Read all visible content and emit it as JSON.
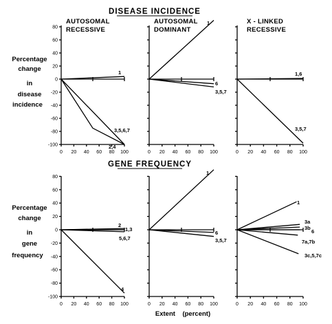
{
  "headings": {
    "top": "DISEASE INCIDENCE",
    "bottom": "GENE FREQUENCY"
  },
  "columns": {
    "c0": [
      "AUTOSOMAL",
      "RECESSIVE"
    ],
    "c1": [
      "AUTOSOMAL",
      "DOMINANT"
    ],
    "c2": [
      "X - LINKED",
      "RECESSIVE"
    ]
  },
  "ylabels": {
    "top": [
      "Percentage",
      "change",
      "in",
      "disease",
      "incidence"
    ],
    "bottom": [
      "Percentage",
      "change",
      "in",
      "gene",
      "frequency"
    ]
  },
  "xlabel": "Extent    (percent)",
  "chart_data": [
    {
      "type": "line",
      "panel": "disease-incidence-autosomal-recessive",
      "xlim": [
        0,
        100
      ],
      "ylim": [
        -100,
        80
      ],
      "grid": false,
      "xticks": [
        0,
        20,
        40,
        60,
        80,
        100
      ],
      "yticks": [
        80,
        60,
        40,
        20,
        0,
        -20,
        -40,
        -60,
        -80,
        -100
      ],
      "series": [
        {
          "name": "1",
          "x": [
            0,
            100
          ],
          "y": [
            0,
            4
          ]
        },
        {
          "name": "3,5,6,7",
          "x": [
            0,
            100
          ],
          "y": [
            0,
            -100
          ]
        },
        {
          "name": "2,4",
          "x": [
            0,
            50,
            100
          ],
          "y": [
            0,
            -75,
            -100
          ]
        }
      ]
    },
    {
      "type": "line",
      "panel": "disease-incidence-autosomal-dominant",
      "xlim": [
        0,
        100
      ],
      "ylim": [
        -100,
        80
      ],
      "grid": false,
      "xticks": [
        0,
        20,
        40,
        60,
        80,
        100
      ],
      "series": [
        {
          "name": "1",
          "x": [
            0,
            100
          ],
          "y": [
            0,
            90
          ]
        },
        {
          "name": "6",
          "x": [
            0,
            100
          ],
          "y": [
            0,
            -7
          ]
        },
        {
          "name": "3,5,7",
          "x": [
            0,
            100
          ],
          "y": [
            0,
            -12
          ]
        }
      ]
    },
    {
      "type": "line",
      "panel": "disease-incidence-x-linked-recessive",
      "xlim": [
        0,
        100
      ],
      "ylim": [
        -100,
        80
      ],
      "grid": false,
      "xticks": [
        0,
        20,
        40,
        60,
        80,
        100
      ],
      "series": [
        {
          "name": "1,6",
          "x": [
            0,
            100
          ],
          "y": [
            0,
            1
          ]
        },
        {
          "name": "3,5,7",
          "x": [
            0,
            100
          ],
          "y": [
            0,
            -98
          ]
        }
      ]
    },
    {
      "type": "line",
      "panel": "gene-frequency-autosomal-recessive",
      "xlim": [
        0,
        100
      ],
      "ylim": [
        -100,
        80
      ],
      "grid": false,
      "xticks": [
        0,
        20,
        40,
        60,
        80,
        100
      ],
      "yticks": [
        80,
        60,
        40,
        20,
        0,
        -20,
        -40,
        -60,
        -80,
        -100
      ],
      "series": [
        {
          "name": "2",
          "x": [
            0,
            100
          ],
          "y": [
            0,
            2
          ]
        },
        {
          "name": "1,3",
          "x": [
            0,
            100
          ],
          "y": [
            0,
            0
          ]
        },
        {
          "name": "5,6,7",
          "x": [
            0,
            100
          ],
          "y": [
            0,
            -3
          ]
        },
        {
          "name": "4",
          "x": [
            0,
            100
          ],
          "y": [
            0,
            -95
          ]
        }
      ]
    },
    {
      "type": "line",
      "panel": "gene-frequency-autosomal-dominant",
      "xlim": [
        0,
        100
      ],
      "ylim": [
        -100,
        80
      ],
      "grid": false,
      "xticks": [
        0,
        20,
        40,
        60,
        80,
        100
      ],
      "series": [
        {
          "name": "1",
          "x": [
            0,
            100
          ],
          "y": [
            0,
            90
          ]
        },
        {
          "name": "6",
          "x": [
            0,
            100
          ],
          "y": [
            0,
            -4
          ]
        },
        {
          "name": "3,5,7",
          "x": [
            0,
            100
          ],
          "y": [
            0,
            -10
          ]
        }
      ]
    },
    {
      "type": "line",
      "panel": "gene-frequency-x-linked-recessive",
      "xlim": [
        0,
        100
      ],
      "ylim": [
        -100,
        80
      ],
      "grid": false,
      "xticks": [
        0,
        20,
        40,
        60,
        80,
        100
      ],
      "series": [
        {
          "name": "1",
          "x": [
            0,
            90
          ],
          "y": [
            0,
            42
          ]
        },
        {
          "name": "3a",
          "x": [
            0,
            95
          ],
          "y": [
            0,
            8
          ]
        },
        {
          "name": "3b",
          "x": [
            0,
            95
          ],
          "y": [
            0,
            4
          ]
        },
        {
          "name": "6",
          "x": [
            0,
            95
          ],
          "y": [
            0,
            0
          ]
        },
        {
          "name": "7a,7b",
          "x": [
            0,
            92
          ],
          "y": [
            0,
            -8
          ]
        },
        {
          "name": "3c,5,7c",
          "x": [
            0,
            93
          ],
          "y": [
            0,
            -36
          ]
        }
      ]
    }
  ]
}
